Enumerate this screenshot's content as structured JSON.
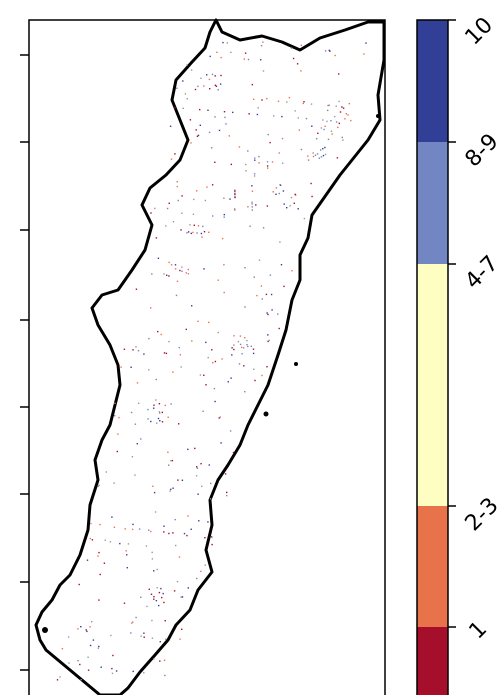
{
  "legend": {
    "classes": [
      {
        "label": "10",
        "color": "#323f96"
      },
      {
        "label": "8-9",
        "color": "#7186c3"
      },
      {
        "label": "4-7",
        "color": "#fefec3"
      },
      {
        "label": "2-3",
        "color": "#e8734a"
      },
      {
        "label": "1",
        "color": "#a50f2b"
      }
    ]
  },
  "map": {
    "region_fill": "#ffffff",
    "outline_color": "#000000"
  }
}
